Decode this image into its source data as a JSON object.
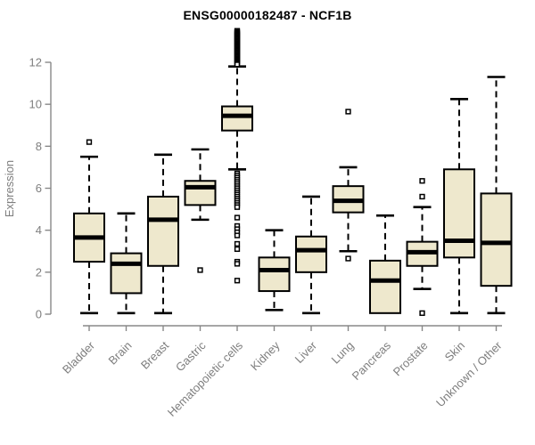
{
  "chart_data": {
    "type": "boxplot",
    "title": "ENSG00000182487 - NCF1B",
    "xlabel": "",
    "ylabel": "Expression",
    "ylim": [
      0,
      13.5
    ],
    "yticks": [
      0,
      2,
      4,
      6,
      8,
      10,
      12
    ],
    "grid": false,
    "legend": null,
    "colors": {
      "box_fill": "#EEE8CD",
      "box_stroke": "#000000",
      "median": "#000000",
      "whisker": "#000000",
      "outlier_fill": "#FFFFFF",
      "outlier_stroke": "#000000",
      "axis": "#888888",
      "tick_label": "#7E7E7E",
      "title": "#000000",
      "background": "#FFFFFF"
    },
    "categories": [
      "Bladder",
      "Brain",
      "Breast",
      "Gastric",
      "Hematopoietic cells",
      "Kidney",
      "Liver",
      "Lung",
      "Pancreas",
      "Prostate",
      "Skin",
      "Unknown / Other"
    ],
    "boxes": [
      {
        "category": "Bladder",
        "whisker_low": 0.05,
        "q1": 2.5,
        "median": 3.65,
        "q3": 4.8,
        "whisker_high": 7.5,
        "outliers": [
          8.2
        ]
      },
      {
        "category": "Brain",
        "whisker_low": 0.05,
        "q1": 1.0,
        "median": 2.4,
        "q3": 2.9,
        "whisker_high": 4.8,
        "outliers": []
      },
      {
        "category": "Breast",
        "whisker_low": 0.05,
        "q1": 2.3,
        "median": 4.5,
        "q3": 5.6,
        "whisker_high": 7.6,
        "outliers": []
      },
      {
        "category": "Gastric",
        "whisker_low": 4.5,
        "q1": 5.2,
        "median": 6.05,
        "q3": 6.35,
        "whisker_high": 7.85,
        "outliers": [
          2.1
        ]
      },
      {
        "category": "Hematopoietic cells",
        "whisker_low": 6.9,
        "q1": 8.75,
        "median": 9.45,
        "q3": 9.9,
        "whisker_high": 11.8,
        "outliers": [
          13.5,
          13.45,
          13.4,
          13.35,
          13.3,
          13.25,
          13.2,
          13.15,
          13.1,
          13.05,
          13.0,
          12.95,
          12.9,
          12.85,
          12.8,
          12.75,
          12.7,
          12.65,
          12.6,
          12.55,
          12.5,
          12.45,
          12.4,
          12.35,
          12.3,
          12.25,
          12.2,
          12.15,
          12.1,
          12.05,
          12.0,
          11.95,
          11.9,
          6.7,
          6.6,
          6.5,
          6.4,
          6.3,
          6.2,
          6.1,
          6.0,
          5.9,
          5.8,
          5.7,
          5.6,
          5.5,
          5.4,
          5.3,
          5.2,
          5.1,
          4.6,
          4.2,
          4.05,
          3.9,
          3.75,
          3.35,
          3.1,
          2.5,
          2.4,
          1.6
        ]
      },
      {
        "category": "Kidney",
        "whisker_low": 0.2,
        "q1": 1.1,
        "median": 2.1,
        "q3": 2.7,
        "whisker_high": 4.0,
        "outliers": []
      },
      {
        "category": "Liver",
        "whisker_low": 0.05,
        "q1": 2.0,
        "median": 3.05,
        "q3": 3.7,
        "whisker_high": 5.6,
        "outliers": []
      },
      {
        "category": "Lung",
        "whisker_low": 3.0,
        "q1": 4.85,
        "median": 5.4,
        "q3": 6.1,
        "whisker_high": 7.0,
        "outliers": [
          9.65,
          2.65
        ]
      },
      {
        "category": "Pancreas",
        "whisker_low": 0.05,
        "q1": 0.05,
        "median": 1.6,
        "q3": 2.55,
        "whisker_high": 4.7,
        "outliers": []
      },
      {
        "category": "Prostate",
        "whisker_low": 1.2,
        "q1": 2.3,
        "median": 2.95,
        "q3": 3.45,
        "whisker_high": 5.1,
        "outliers": [
          6.35,
          5.6,
          0.05
        ]
      },
      {
        "category": "Skin",
        "whisker_low": 0.05,
        "q1": 2.7,
        "median": 3.5,
        "q3": 6.9,
        "whisker_high": 10.25,
        "outliers": []
      },
      {
        "category": "Unknown / Other",
        "whisker_low": 0.05,
        "q1": 1.35,
        "median": 3.4,
        "q3": 5.75,
        "whisker_high": 11.3,
        "outliers": []
      }
    ]
  }
}
